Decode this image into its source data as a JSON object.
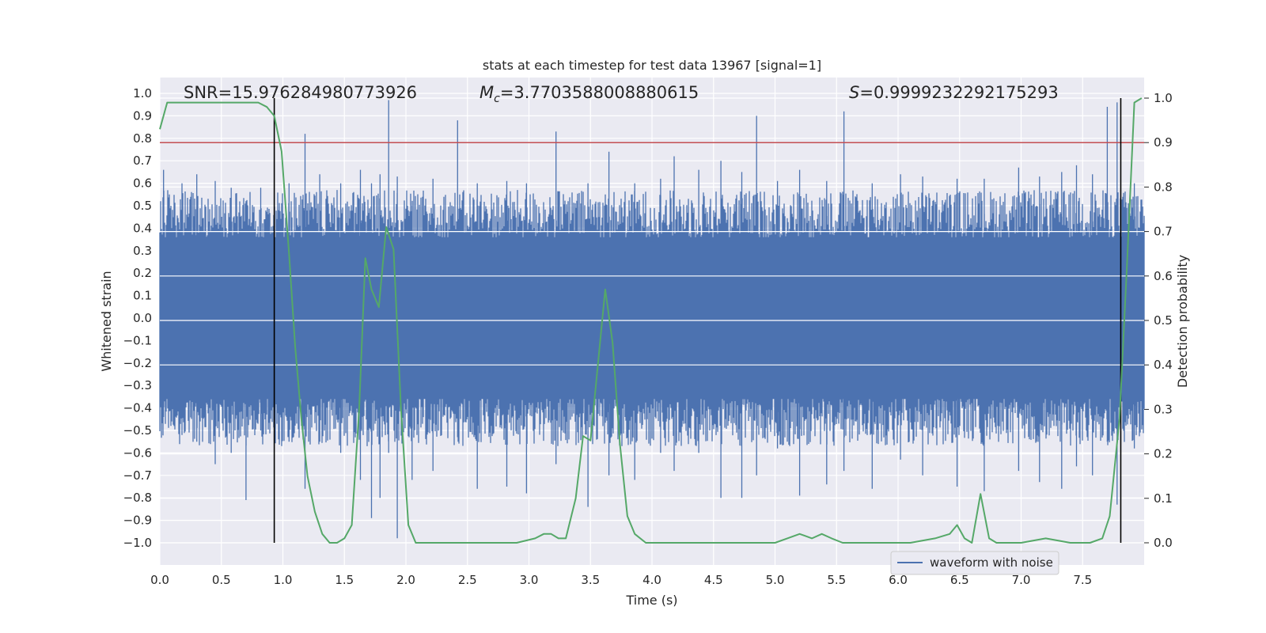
{
  "chart_data": {
    "type": "line",
    "title": "stats at each timestep for test data 13967 [signal=1]",
    "xlabel": "Time (s)",
    "ylabel": "Whitened strain",
    "y2label": "Detection probability",
    "xlim": [
      0.0,
      8.0
    ],
    "ylim": [
      -1.1,
      1.05
    ],
    "y2lim": [
      -0.05,
      1.05
    ],
    "xticks": [
      "0.0",
      "0.5",
      "1.0",
      "1.5",
      "2.0",
      "2.5",
      "3.0",
      "3.5",
      "4.0",
      "4.5",
      "5.0",
      "5.5",
      "6.0",
      "6.5",
      "7.0",
      "7.5"
    ],
    "yticks": [
      "1.0",
      "0.9",
      "0.8",
      "0.7",
      "0.6",
      "0.5",
      "0.4",
      "0.3",
      "0.2",
      "0.1",
      "0.0",
      "−0.1",
      "−0.2",
      "−0.3",
      "−0.4",
      "−0.5",
      "−0.6",
      "−0.7",
      "−0.8",
      "−0.9",
      "−1.0"
    ],
    "y2ticks": [
      "1.0",
      "0.9",
      "0.8",
      "0.7",
      "0.6",
      "0.5",
      "0.4",
      "0.3",
      "0.2",
      "0.1",
      "0.0"
    ],
    "annotations": {
      "snr": "SNR=15.976284980773926",
      "mc_symbol": "M",
      "mc_sub": "c",
      "mc_value": "=3.7703588008880615",
      "s_symbol": "S",
      "s_value": "=0.9999232292175293"
    },
    "threshold": {
      "axis": "y2",
      "value": 0.9,
      "color": "#c44e52"
    },
    "vertical_lines": [
      0.93,
      7.81
    ],
    "colors": {
      "waveform": "#4c72b0",
      "probability": "#55a868",
      "threshold": "#c44e52",
      "vline": "#000000",
      "background": "#eaeaf2"
    },
    "series": [
      {
        "name": "waveform with noise",
        "axis": "y",
        "description": "dense noise band",
        "base_envelope": 0.35,
        "spikes": [
          [
            0.03,
            0.66,
            -0.44
          ],
          [
            0.18,
            0.6,
            -0.52
          ],
          [
            0.3,
            0.64,
            -0.55
          ],
          [
            0.45,
            0.61,
            -0.65
          ],
          [
            0.58,
            0.58,
            -0.6
          ],
          [
            0.7,
            0.52,
            -0.81
          ],
          [
            0.82,
            0.58,
            -0.5
          ],
          [
            0.93,
            0.46,
            -0.42
          ],
          [
            1.05,
            0.6,
            -0.55
          ],
          [
            1.18,
            0.82,
            -0.76
          ],
          [
            1.3,
            0.64,
            -0.55
          ],
          [
            1.47,
            0.6,
            -0.6
          ],
          [
            1.63,
            0.66,
            -0.72
          ],
          [
            1.72,
            0.6,
            -0.89
          ],
          [
            1.79,
            0.64,
            -0.8
          ],
          [
            1.86,
            0.97,
            -0.6
          ],
          [
            1.93,
            0.63,
            -0.98
          ],
          [
            2.05,
            0.5,
            -0.72
          ],
          [
            2.22,
            0.62,
            -0.68
          ],
          [
            2.42,
            0.88,
            -0.53
          ],
          [
            2.58,
            0.6,
            -0.76
          ],
          [
            2.82,
            0.61,
            -0.75
          ],
          [
            2.98,
            0.6,
            -0.78
          ],
          [
            3.22,
            0.83,
            -0.65
          ],
          [
            3.48,
            0.6,
            -0.84
          ],
          [
            3.65,
            0.74,
            -0.7
          ],
          [
            3.86,
            0.6,
            -0.72
          ],
          [
            4.07,
            0.62,
            -0.6
          ],
          [
            4.18,
            0.72,
            -0.68
          ],
          [
            4.38,
            0.66,
            -0.6
          ],
          [
            4.56,
            0.7,
            -0.8
          ],
          [
            4.73,
            0.65,
            -0.8
          ],
          [
            4.85,
            0.9,
            -0.7
          ],
          [
            5.02,
            0.61,
            -0.58
          ],
          [
            5.2,
            0.66,
            -0.79
          ],
          [
            5.42,
            0.61,
            -0.74
          ],
          [
            5.56,
            0.92,
            -0.68
          ],
          [
            5.79,
            0.6,
            -0.76
          ],
          [
            6.02,
            0.64,
            -0.63
          ],
          [
            6.2,
            0.63,
            -0.7
          ],
          [
            6.48,
            0.62,
            -0.75
          ],
          [
            6.7,
            0.62,
            -0.77
          ],
          [
            6.98,
            0.67,
            -0.68
          ],
          [
            7.15,
            0.63,
            -0.73
          ],
          [
            7.33,
            0.65,
            -0.76
          ],
          [
            7.45,
            0.68,
            -0.66
          ],
          [
            7.58,
            0.64,
            -0.7
          ],
          [
            7.7,
            0.94,
            -0.55
          ],
          [
            7.78,
            0.96,
            -0.83
          ],
          [
            7.92,
            0.6,
            -0.58
          ]
        ]
      },
      {
        "name": "Detection probability",
        "axis": "y2",
        "x": [
          0.0,
          0.06,
          0.3,
          0.6,
          0.8,
          0.87,
          0.93,
          0.99,
          1.05,
          1.1,
          1.15,
          1.2,
          1.26,
          1.32,
          1.38,
          1.44,
          1.5,
          1.56,
          1.62,
          1.67,
          1.72,
          1.78,
          1.84,
          1.9,
          1.96,
          2.02,
          2.08,
          2.2,
          2.4,
          2.7,
          2.9,
          3.05,
          3.12,
          3.18,
          3.24,
          3.3,
          3.38,
          3.44,
          3.5,
          3.56,
          3.62,
          3.68,
          3.74,
          3.8,
          3.86,
          3.95,
          4.2,
          4.5,
          4.8,
          5.0,
          5.1,
          5.2,
          5.3,
          5.38,
          5.46,
          5.55,
          5.7,
          5.9,
          6.1,
          6.3,
          6.42,
          6.48,
          6.54,
          6.6,
          6.67,
          6.74,
          6.8,
          7.0,
          7.2,
          7.4,
          7.56,
          7.66,
          7.72,
          7.8,
          7.86,
          7.92,
          7.98
        ],
        "y": [
          0.93,
          0.99,
          0.99,
          0.99,
          0.99,
          0.98,
          0.96,
          0.88,
          0.65,
          0.44,
          0.28,
          0.15,
          0.07,
          0.02,
          0.0,
          0.0,
          0.01,
          0.04,
          0.3,
          0.64,
          0.57,
          0.53,
          0.71,
          0.66,
          0.3,
          0.04,
          0.0,
          0.0,
          0.0,
          0.0,
          0.0,
          0.01,
          0.02,
          0.02,
          0.01,
          0.01,
          0.1,
          0.24,
          0.23,
          0.4,
          0.57,
          0.45,
          0.22,
          0.06,
          0.02,
          0.0,
          0.0,
          0.0,
          0.0,
          0.0,
          0.01,
          0.02,
          0.01,
          0.02,
          0.01,
          0.0,
          0.0,
          0.0,
          0.0,
          0.01,
          0.02,
          0.04,
          0.01,
          0.0,
          0.11,
          0.01,
          0.0,
          0.0,
          0.01,
          0.0,
          0.0,
          0.01,
          0.06,
          0.28,
          0.62,
          0.99,
          1.0
        ]
      }
    ],
    "legend": {
      "label": "waveform with noise",
      "placement": "lower-right"
    }
  }
}
